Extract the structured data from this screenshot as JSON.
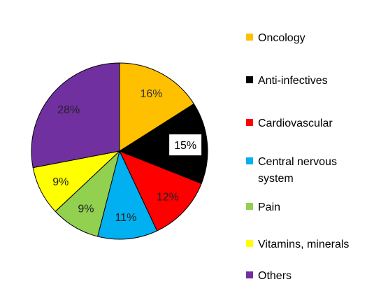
{
  "chart_data": {
    "type": "pie",
    "title": "",
    "start_angle_deg": 0,
    "direction": "clockwise",
    "legend_position": "right",
    "slices": [
      {
        "label": "Oncology",
        "label_lines": [
          "Oncology"
        ],
        "value": 16,
        "data_label": "16%",
        "color": "#FFC000",
        "label_color": "#333333",
        "label_box": false
      },
      {
        "label": "Anti-infectives",
        "label_lines": [
          "Anti-infectives"
        ],
        "value": 15,
        "data_label": "15%",
        "color": "#000000",
        "label_color": "#000000",
        "label_box": true
      },
      {
        "label": "Cardiovascular",
        "label_lines": [
          "Cardiovascular"
        ],
        "value": 12,
        "data_label": "12%",
        "color": "#FF0000",
        "label_color": "#222222",
        "label_box": false
      },
      {
        "label": "Central nervous system",
        "label_lines": [
          "Central nervous",
          "system"
        ],
        "value": 11,
        "data_label": "11%",
        "color": "#00B0F0",
        "label_color": "#222222",
        "label_box": false
      },
      {
        "label": "Pain",
        "label_lines": [
          "Pain"
        ],
        "value": 9,
        "data_label": "9%",
        "color": "#92D050",
        "label_color": "#222222",
        "label_box": false
      },
      {
        "label": "Vitamins, minerals",
        "label_lines": [
          "Vitamins, minerals"
        ],
        "value": 9,
        "data_label": "9%",
        "color": "#FFFF00",
        "label_color": "#222222",
        "label_box": false
      },
      {
        "label": "Others",
        "label_lines": [
          "Others"
        ],
        "value": 28,
        "data_label": "28%",
        "color": "#7030A0",
        "label_color": "#222222",
        "label_box": false
      }
    ]
  }
}
